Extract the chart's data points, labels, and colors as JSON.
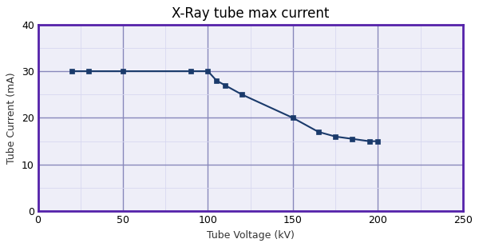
{
  "title": "X-Ray tube max current",
  "xlabel": "Tube Voltage (kV)",
  "ylabel": "Tube Current (mA)",
  "x": [
    20,
    30,
    50,
    90,
    100,
    105,
    110,
    120,
    150,
    165,
    175,
    185,
    195,
    200
  ],
  "y": [
    30,
    30,
    30,
    30,
    30,
    28,
    27,
    25,
    20,
    17,
    16,
    15.5,
    15,
    15
  ],
  "xlim": [
    0,
    250
  ],
  "ylim": [
    0,
    40
  ],
  "xticks": [
    0,
    50,
    100,
    150,
    200,
    250
  ],
  "yticks": [
    0,
    10,
    20,
    30,
    40
  ],
  "xticks_minor": [
    0,
    25,
    50,
    75,
    100,
    125,
    150,
    175,
    200,
    225,
    250
  ],
  "yticks_minor": [
    0,
    5,
    10,
    15,
    20,
    25,
    30,
    35,
    40
  ],
  "line_color": "#1a3a6b",
  "marker": "s",
  "marker_color": "#1a3a6b",
  "grid_minor_color": "#d8d8f0",
  "grid_major_color": "#8888bb",
  "spine_color": "#5522aa",
  "plot_bg_color": "#eeeef8",
  "fig_bg_color": "#ffffff",
  "title_fontsize": 12,
  "label_fontsize": 9,
  "tick_fontsize": 9,
  "figsize": [
    6.0,
    3.09
  ],
  "dpi": 100
}
